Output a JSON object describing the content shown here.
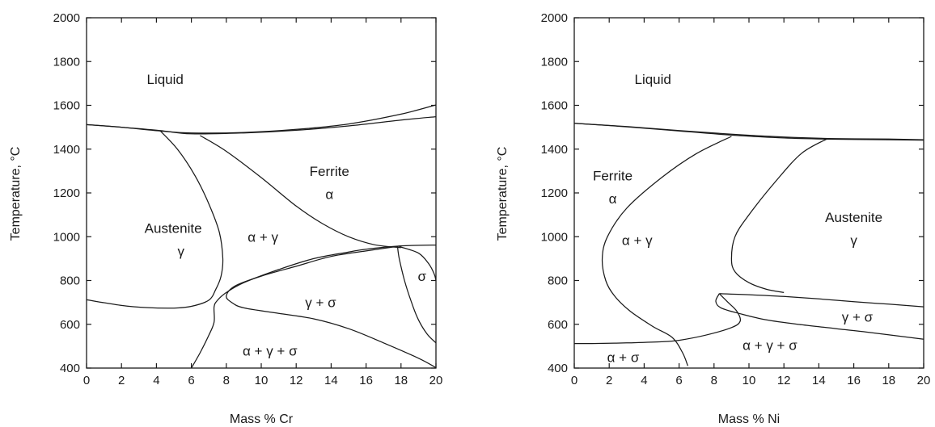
{
  "chart_data": [
    {
      "type": "line",
      "subtype": "phase-diagram",
      "title": "",
      "xlabel": "Mass % Cr",
      "ylabel": "Temperature, °C",
      "xlim": [
        0,
        20
      ],
      "ylim": [
        400,
        2000
      ],
      "x_ticks": [
        "0",
        "2",
        "4",
        "6",
        "8",
        "10",
        "12",
        "14",
        "16",
        "18",
        "20"
      ],
      "y_ticks": [
        "400",
        "600",
        "800",
        "1000",
        "1200",
        "1400",
        "1600",
        "1800",
        "2000"
      ],
      "grid": false,
      "regions": [
        {
          "label": "Liquid",
          "x": 4.5,
          "y": 1720
        },
        {
          "label": "Ferrite",
          "x": 13.9,
          "y": 1300
        },
        {
          "label": "α",
          "x": 13.9,
          "y": 1195
        },
        {
          "label": "Austenite",
          "x": 6.6,
          "y": 1040,
          "anchor": "end"
        },
        {
          "label": "γ",
          "x": 5.6,
          "y": 935,
          "anchor": "end"
        },
        {
          "label": "α + γ",
          "x": 10.1,
          "y": 1000
        },
        {
          "label": "γ + σ",
          "x": 13.4,
          "y": 700
        },
        {
          "label": "σ",
          "x": 19.2,
          "y": 820
        },
        {
          "label": "α + γ + σ",
          "x": 10.5,
          "y": 480
        }
      ],
      "curves": [
        {
          "points": [
            [
              0,
              1512
            ],
            [
              2,
              1500
            ],
            [
              4.2,
              1483
            ],
            [
              6,
              1474
            ],
            [
              9,
              1476
            ],
            [
              12,
              1490
            ],
            [
              15,
              1515
            ],
            [
              18,
              1560
            ],
            [
              20,
              1602
            ]
          ]
        },
        {
          "points": [
            [
              0,
              1512
            ],
            [
              2,
              1500
            ],
            [
              4.2,
              1485
            ],
            [
              6,
              1470
            ],
            [
              9,
              1474
            ],
            [
              12,
              1486
            ],
            [
              15,
              1506
            ],
            [
              18,
              1533
            ],
            [
              20,
              1548
            ]
          ]
        },
        {
          "points": [
            [
              6.5,
              1462
            ],
            [
              8,
              1390
            ],
            [
              10,
              1270
            ],
            [
              12,
              1140
            ],
            [
              13.5,
              1060
            ],
            [
              15,
              1000
            ],
            [
              16.5,
              963
            ],
            [
              18,
              950
            ]
          ]
        },
        {
          "points": [
            [
              4.2,
              1485
            ],
            [
              5.2,
              1400
            ],
            [
              6.2,
              1280
            ],
            [
              7,
              1150
            ],
            [
              7.6,
              1020
            ],
            [
              7.8,
              900
            ],
            [
              7.7,
              820
            ],
            [
              7.4,
              760
            ],
            [
              7,
              710
            ],
            [
              6,
              682
            ],
            [
              5,
              674
            ],
            [
              3.5,
              676
            ],
            [
              2,
              686
            ],
            [
              0,
              712
            ]
          ]
        },
        {
          "points": [
            [
              6,
              400
            ],
            [
              6.5,
              470
            ],
            [
              7,
              550
            ],
            [
              7.3,
              610
            ],
            [
              7.3,
              680
            ],
            [
              7.5,
              710
            ],
            [
              8,
              745
            ],
            [
              9,
              790
            ],
            [
              11,
              850
            ],
            [
              13,
              900
            ],
            [
              15,
              930
            ],
            [
              16,
              943
            ],
            [
              18,
              958
            ],
            [
              20,
              962
            ]
          ]
        },
        {
          "points": [
            [
              18,
              958
            ],
            [
              16,
              935
            ],
            [
              14,
              910
            ],
            [
              12,
              865
            ],
            [
              10,
              820
            ],
            [
              8.5,
              775
            ],
            [
              8,
              730
            ],
            [
              8.3,
              700
            ],
            [
              9,
              675
            ],
            [
              11,
              650
            ],
            [
              13,
              625
            ],
            [
              15,
              580
            ],
            [
              17,
              515
            ],
            [
              19,
              445
            ],
            [
              20,
              402
            ]
          ]
        },
        {
          "points": [
            [
              17.8,
              955
            ],
            [
              17.9,
              900
            ],
            [
              18.2,
              800
            ],
            [
              18.6,
              700
            ],
            [
              19,
              620
            ],
            [
              19.5,
              555
            ],
            [
              20,
              515
            ]
          ]
        },
        {
          "points": [
            [
              17.9,
              955
            ],
            [
              19,
              925
            ],
            [
              19.6,
              875
            ],
            [
              19.9,
              830
            ],
            [
              20,
              800
            ]
          ]
        }
      ]
    },
    {
      "type": "line",
      "subtype": "phase-diagram",
      "title": "",
      "xlabel": "Mass % Ni",
      "ylabel": "Temperature, °C",
      "xlim": [
        0,
        20
      ],
      "ylim": [
        400,
        2000
      ],
      "x_ticks": [
        "0",
        "2",
        "4",
        "6",
        "8",
        "10",
        "12",
        "14",
        "16",
        "18",
        "20"
      ],
      "y_ticks": [
        "400",
        "600",
        "800",
        "1000",
        "1200",
        "1400",
        "1600",
        "1800",
        "2000"
      ],
      "grid": false,
      "regions": [
        {
          "label": "Liquid",
          "x": 4.5,
          "y": 1720
        },
        {
          "label": "Ferrite",
          "x": 2.2,
          "y": 1280
        },
        {
          "label": "α",
          "x": 2.2,
          "y": 1175
        },
        {
          "label": "Austenite",
          "x": 16,
          "y": 1090
        },
        {
          "label": "γ",
          "x": 16,
          "y": 985
        },
        {
          "label": "α + γ",
          "x": 3.6,
          "y": 985
        },
        {
          "label": "γ + σ",
          "x": 16.2,
          "y": 635
        },
        {
          "label": "α + σ",
          "x": 2.8,
          "y": 450
        },
        {
          "label": "α + γ + σ",
          "x": 11.2,
          "y": 505
        }
      ],
      "curves": [
        {
          "points": [
            [
              0,
              1518
            ],
            [
              3,
              1503
            ],
            [
              6,
              1485
            ],
            [
              9,
              1468
            ],
            [
              12,
              1455
            ],
            [
              15,
              1448
            ],
            [
              18,
              1446
            ],
            [
              20,
              1443
            ]
          ]
        },
        {
          "points": [
            [
              0,
              1518
            ],
            [
              3,
              1502
            ],
            [
              6,
              1483
            ],
            [
              9,
              1464
            ],
            [
              12,
              1451
            ],
            [
              15,
              1445
            ],
            [
              18,
              1443
            ],
            [
              20,
              1441
            ]
          ]
        },
        {
          "points": [
            [
              9,
              1458
            ],
            [
              7,
              1380
            ],
            [
              5,
              1270
            ],
            [
              3,
              1130
            ],
            [
              1.9,
              1000
            ],
            [
              1.6,
              900
            ],
            [
              1.8,
              800
            ],
            [
              2.3,
              730
            ],
            [
              3.2,
              660
            ],
            [
              4.5,
              590
            ],
            [
              5.6,
              540
            ],
            [
              6.2,
              470
            ],
            [
              6.5,
              410
            ]
          ]
        },
        {
          "points": [
            [
              14.5,
              1448
            ],
            [
              13,
              1380
            ],
            [
              11.5,
              1250
            ],
            [
              10,
              1100
            ],
            [
              9.2,
              1000
            ],
            [
              9,
              900
            ],
            [
              9.2,
              840
            ],
            [
              10,
              790
            ],
            [
              11,
              760
            ],
            [
              12,
              745
            ]
          ]
        },
        {
          "points": [
            [
              8.3,
              740
            ],
            [
              10,
              735
            ],
            [
              12,
              727
            ],
            [
              14,
              716
            ],
            [
              16,
              703
            ],
            [
              18,
              692
            ],
            [
              20,
              680
            ]
          ]
        },
        {
          "points": [
            [
              8.3,
              740
            ],
            [
              8.1,
              705
            ],
            [
              8.4,
              675
            ],
            [
              9.5,
              648
            ],
            [
              11,
              620
            ],
            [
              13,
              598
            ],
            [
              15,
              580
            ],
            [
              17,
              562
            ],
            [
              19,
              542
            ],
            [
              20,
              532
            ]
          ]
        },
        {
          "points": [
            [
              8.3,
              740
            ],
            [
              8.8,
              700
            ],
            [
              9.3,
              660
            ],
            [
              9.5,
              615
            ],
            [
              9,
              585
            ],
            [
              7.5,
              550
            ],
            [
              6,
              527
            ],
            [
              5,
              520
            ],
            [
              3,
              515
            ],
            [
              1,
              512
            ],
            [
              0,
              512
            ]
          ]
        }
      ]
    }
  ]
}
